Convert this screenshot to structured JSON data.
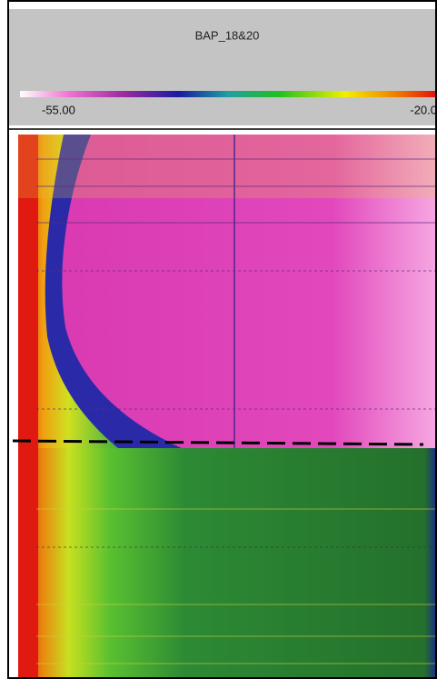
{
  "header": {
    "title": "BAP_18&20"
  },
  "colorbar": {
    "min_label": "-55.00",
    "max_label": "-20.0"
  }
}
